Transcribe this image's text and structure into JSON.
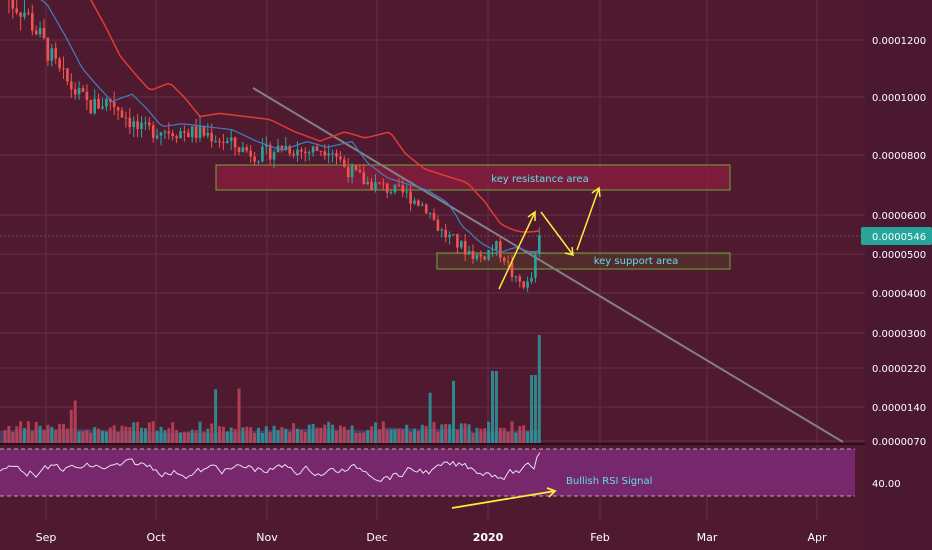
{
  "chart_data": {
    "type": "candlestick",
    "symbol_currency": "",
    "price_axis": {
      "tick_labels": [
        "0.0001200",
        "0.0001000",
        "0.0000800",
        "0.0000600",
        "0.0000500",
        "0.0000400",
        "0.0000300",
        "0.0000220",
        "0.0000140",
        "0.0000070"
      ],
      "tick_values": [
        0.00012,
        0.0001,
        8e-05,
        6e-05,
        5e-05,
        4e-05,
        3e-05,
        2.2e-05,
        1.4e-05,
        7e-06
      ]
    },
    "time_axis": {
      "tick_labels": [
        "Sep",
        "Oct",
        "Nov",
        "Dec",
        "2020",
        "Feb",
        "Mar",
        "Apr"
      ]
    },
    "last_price": {
      "value": 5.46e-05,
      "label": "0.0000546"
    },
    "approx_series_summary": {
      "price_start_sep": 0.000135,
      "price_mid_oct": 8.8e-05,
      "price_early_nov": 8.2e-05,
      "price_mid_dec": 5.8e-05,
      "price_low_jan": 4.1e-05,
      "price_end": 5.46e-05,
      "moving_average_red_end": 5.6e-05,
      "moving_average_blue_end": 5.1e-05,
      "volume_spike_peak": 2.9e-05
    },
    "zones": [
      {
        "name": "resistance",
        "label": "key resistance area",
        "price_low": 6.75e-05,
        "price_high": 7.55e-05
      },
      {
        "name": "support",
        "label": "key support area",
        "price_low": 4.7e-05,
        "price_high": 5e-05
      }
    ],
    "rsi": {
      "level_label": "40.00",
      "annotation": "Bullish RSI Signal"
    },
    "colors": {
      "background": "#4f1a30",
      "up": "#26a69a",
      "down": "#ef5350",
      "ma_red": "#e53935",
      "ma_blue": "#3f7fbf",
      "trendline": "#7d7d86",
      "annotation": "#ffeb3b",
      "rsi_band": "#7b2a74",
      "zone_text": "#5ce1e6",
      "last_price_tag": "#26a69a"
    }
  }
}
